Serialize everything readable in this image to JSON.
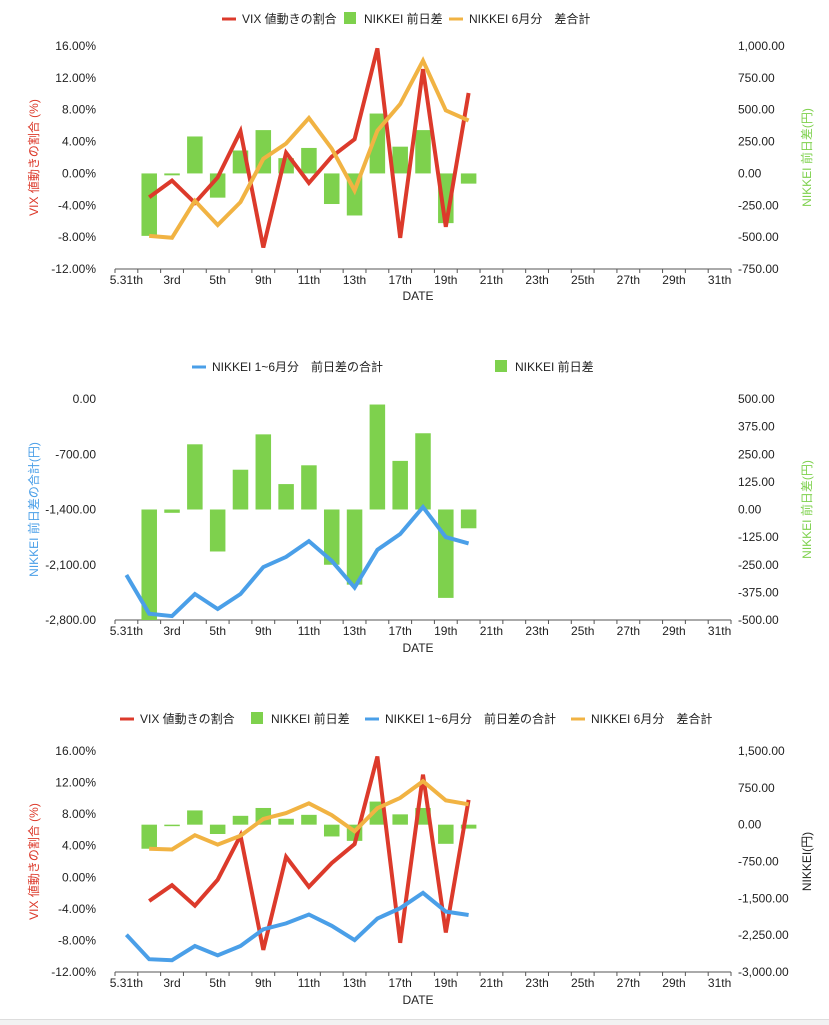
{
  "colors": {
    "vix": "#dc3a2b",
    "nikkei_bar": "#7ed14d",
    "nikkei_6m": "#f1b343",
    "nikkei_cum": "#4a9fe8",
    "axis_text": "#222222",
    "grid": "#e6e6e6"
  },
  "chart_data": [
    {
      "type": "bar+line",
      "xlabel": "DATE",
      "x_ticks": [
        "5.31th",
        "3rd",
        "5th",
        "9th",
        "11th",
        "13th",
        "17th",
        "19th",
        "21th",
        "23th",
        "25th",
        "27th",
        "29th",
        "31th"
      ],
      "x_tick_positions": [
        0,
        2,
        4,
        6,
        8,
        10,
        12,
        14,
        16,
        18,
        20,
        22,
        24,
        26
      ],
      "y_left_label": "VIX 値動きの割合 (%)",
      "y_left_ticks": [
        "16.00%",
        "12.00%",
        "8.00%",
        "4.00%",
        "0.00%",
        "-4.00%",
        "-8.00%",
        "-12.00%"
      ],
      "y_left_range": [
        -12,
        16
      ],
      "y_right_label": "NIKKEI 前日差(円)",
      "y_right_ticks": [
        "1,000.00",
        "750.00",
        "500.00",
        "250.00",
        "0.00",
        "-250.00",
        "-500.00",
        "-750.00"
      ],
      "y_right_range": [
        -750,
        1000
      ],
      "legend": [
        "VIX 値動きの割合",
        "NIKKEI 前日差",
        "NIKKEI 6月分　差合計"
      ],
      "series": [
        {
          "name": "VIX 値動きの割合",
          "kind": "line",
          "axis": "left",
          "color": "#dc3a2b",
          "x": [
            1,
            2,
            3,
            4,
            5,
            6,
            7,
            8,
            9,
            10,
            11,
            12,
            13,
            14,
            15
          ],
          "values": [
            -3.0,
            -0.9,
            -3.7,
            -0.5,
            5.3,
            -9.3,
            2.6,
            -1.2,
            2.1,
            4.3,
            15.7,
            -8.1,
            13.1,
            -6.7,
            10.1
          ]
        },
        {
          "name": "NIKKEI 前日差",
          "kind": "bar",
          "axis": "right",
          "color": "#7ed14d",
          "x": [
            1,
            2,
            3,
            4,
            5,
            6,
            7,
            8,
            9,
            10,
            11,
            12,
            13,
            14,
            15
          ],
          "values": [
            -490,
            -15,
            290,
            -190,
            180,
            340,
            120,
            200,
            -240,
            -330,
            470,
            210,
            340,
            -390,
            -80
          ]
        },
        {
          "name": "NIKKEI 6月分　差合計",
          "kind": "line",
          "axis": "right",
          "color": "#f1b343",
          "x": [
            1,
            2,
            3,
            4,
            5,
            6,
            7,
            8,
            9,
            10,
            11,
            12,
            13,
            14,
            15
          ],
          "values": [
            -490,
            -505,
            -215,
            -405,
            -225,
            115,
            235,
            435,
            195,
            -135,
            335,
            545,
            885,
            495,
            415
          ]
        }
      ]
    },
    {
      "type": "bar+line",
      "xlabel": "DATE",
      "x_ticks": [
        "5.31th",
        "3rd",
        "5th",
        "9th",
        "11th",
        "13th",
        "17th",
        "19th",
        "21th",
        "23th",
        "25th",
        "27th",
        "29th",
        "31th"
      ],
      "x_tick_positions": [
        0,
        2,
        4,
        6,
        8,
        10,
        12,
        14,
        16,
        18,
        20,
        22,
        24,
        26
      ],
      "y_left_label": "NIKKEI 前日差の合計(円)",
      "y_left_ticks": [
        "0.00",
        "-700.00",
        "-1,400.00",
        "-2,100.00",
        "-2,800.00"
      ],
      "y_left_range": [
        -2800,
        0
      ],
      "y_right_label": "NIKKEI 前日差(円)",
      "y_right_ticks": [
        "500.00",
        "375.00",
        "250.00",
        "125.00",
        "0.00",
        "-125.00",
        "-250.00",
        "-375.00",
        "-500.00"
      ],
      "y_right_range": [
        -500,
        500
      ],
      "legend": [
        "NIKKEI 1~6月分　前日差の合計",
        "NIKKEI 前日差"
      ],
      "series": [
        {
          "name": "NIKKEI 1~6月分　前日差の合計",
          "kind": "line",
          "axis": "left",
          "color": "#4a9fe8",
          "x": [
            0,
            1,
            2,
            3,
            4,
            5,
            6,
            7,
            8,
            9,
            10,
            11,
            12,
            13,
            14,
            15
          ],
          "values": [
            -2230,
            -2720,
            -2750,
            -2470,
            -2660,
            -2470,
            -2130,
            -2000,
            -1800,
            -2050,
            -2390,
            -1910,
            -1710,
            -1370,
            -1750,
            -1830
          ]
        },
        {
          "name": "NIKKEI 前日差",
          "kind": "bar",
          "axis": "right",
          "color": "#7ed14d",
          "x": [
            1,
            2,
            3,
            4,
            5,
            6,
            7,
            8,
            9,
            10,
            11,
            12,
            13,
            14,
            15
          ],
          "values": [
            -500,
            -15,
            295,
            -190,
            180,
            340,
            115,
            200,
            -250,
            -340,
            475,
            220,
            345,
            -400,
            -85
          ]
        }
      ]
    },
    {
      "type": "bar+line",
      "xlabel": "DATE",
      "x_ticks": [
        "5.31th",
        "3rd",
        "5th",
        "9th",
        "11th",
        "13th",
        "17th",
        "19th",
        "21th",
        "23th",
        "25th",
        "27th",
        "29th",
        "31th"
      ],
      "x_tick_positions": [
        0,
        2,
        4,
        6,
        8,
        10,
        12,
        14,
        16,
        18,
        20,
        22,
        24,
        26
      ],
      "y_left_label": "VIX 値動きの割合 (%)",
      "y_left_ticks": [
        "16.00%",
        "12.00%",
        "8.00%",
        "4.00%",
        "0.00%",
        "-4.00%",
        "-8.00%",
        "-12.00%"
      ],
      "y_left_range": [
        -12,
        16
      ],
      "y_right_label": "NIKKEI(円)",
      "y_right_ticks": [
        "1,500.00",
        "750.00",
        "0.00",
        "-750.00",
        "-1,500.00",
        "-2,250.00",
        "-3,000.00"
      ],
      "y_right_range": [
        -3000,
        1500
      ],
      "legend": [
        "VIX 値動きの割合",
        "NIKKEI 前日差",
        "NIKKEI 1~6月分　前日差の合計",
        "NIKKEI 6月分　差合計"
      ],
      "series": [
        {
          "name": "VIX 値動きの割合",
          "kind": "line",
          "axis": "left",
          "color": "#dc3a2b",
          "x": [
            1,
            2,
            3,
            4,
            5,
            6,
            7,
            8,
            9,
            10,
            11,
            12,
            13,
            14,
            15
          ],
          "values": [
            -3.0,
            -1.0,
            -3.6,
            -0.3,
            5.3,
            -9.2,
            2.6,
            -1.2,
            1.8,
            4.2,
            15.3,
            -8.3,
            13.0,
            -7.0,
            9.8
          ]
        },
        {
          "name": "NIKKEI 前日差",
          "kind": "bar",
          "axis": "right",
          "color": "#7ed14d",
          "x": [
            1,
            2,
            3,
            4,
            5,
            6,
            7,
            8,
            9,
            10,
            11,
            12,
            13,
            14,
            15
          ],
          "values": [
            -490,
            -15,
            290,
            -190,
            180,
            340,
            120,
            200,
            -240,
            -330,
            470,
            210,
            340,
            -390,
            -80
          ]
        },
        {
          "name": "NIKKEI 1~6月分　前日差の合計",
          "kind": "line",
          "axis": "right",
          "color": "#4a9fe8",
          "x": [
            0,
            1,
            2,
            3,
            4,
            5,
            6,
            7,
            8,
            9,
            10,
            11,
            12,
            13,
            14,
            15
          ],
          "values": [
            -2240,
            -2740,
            -2760,
            -2470,
            -2660,
            -2470,
            -2130,
            -2010,
            -1830,
            -2060,
            -2350,
            -1910,
            -1700,
            -1390,
            -1770,
            -1840
          ]
        },
        {
          "name": "NIKKEI 6月分　差合計",
          "kind": "line",
          "axis": "right",
          "color": "#f1b343",
          "x": [
            1,
            2,
            3,
            4,
            5,
            6,
            7,
            8,
            9,
            10,
            11,
            12,
            13,
            14,
            15
          ],
          "values": [
            -490,
            -505,
            -215,
            -405,
            -225,
            115,
            235,
            435,
            195,
            -135,
            335,
            545,
            885,
            495,
            415
          ]
        }
      ]
    }
  ]
}
